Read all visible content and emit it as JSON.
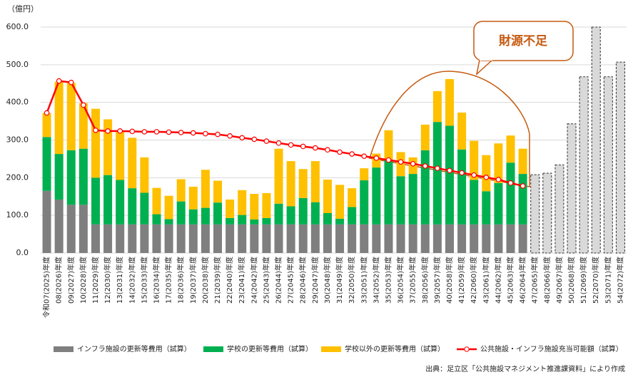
{
  "chart_data": {
    "type": "bar",
    "stacked": true,
    "y_unit": "（億円）",
    "categories": [
      "令和07(2025)年度",
      "08(2026)年度",
      "09(2027)年度",
      "10(2028)年度",
      "11(2029)年度",
      "12(2030)年度",
      "13(2031)年度",
      "14(2032)年度",
      "15(2033)年度",
      "16(2034)年度",
      "17(2035)年度",
      "18(2036)年度",
      "19(2037)年度",
      "20(2038)年度",
      "21(2039)年度",
      "22(2040)年度",
      "23(2041)年度",
      "24(2042)年度",
      "25(2043)年度",
      "26(2044)年度",
      "27(2045)年度",
      "28(2046)年度",
      "29(2047)年度",
      "30(2048)年度",
      "31(2049)年度",
      "32(2050)年度",
      "33(2051)年度",
      "34(2052)年度",
      "35(2053)年度",
      "36(2054)年度",
      "37(2055)年度",
      "38(2056)年度",
      "39(2057)年度",
      "40(2058)年度",
      "41(2059)年度",
      "42(2060)年度",
      "43(2061)年度",
      "44(2062)年度",
      "45(2063)年度",
      "46(2064)年度",
      "47(2065)年度",
      "48(2066)年度",
      "49(2067)年度",
      "50(2068)年度",
      "51(2069)年度",
      "52(2070)年度",
      "53(2071)年度",
      "54(2072)年度"
    ],
    "series": [
      {
        "name": "インフラ施設の更新等費用（試算）",
        "color": "#7f7f7f",
        "values": [
          165,
          142,
          128,
          128,
          76,
          76,
          76,
          76,
          76,
          76,
          76,
          76,
          76,
          76,
          76,
          76,
          76,
          76,
          76,
          76,
          76,
          76,
          76,
          76,
          76,
          76,
          76,
          76,
          76,
          76,
          76,
          76,
          76,
          76,
          76,
          76,
          76,
          76,
          76,
          76,
          null,
          null,
          null,
          null,
          null,
          null,
          null,
          null
        ]
      },
      {
        "name": "学校の更新等費用（試算）",
        "color": "#00b050",
        "values": [
          143,
          121,
          145,
          149,
          124,
          131,
          118,
          96,
          84,
          27,
          14,
          61,
          40,
          44,
          58,
          17,
          25,
          13,
          17,
          55,
          48,
          70,
          59,
          30,
          15,
          46,
          117,
          151,
          171,
          128,
          134,
          197,
          272,
          262,
          199,
          118,
          88,
          110,
          164,
          134,
          null,
          null,
          null,
          null,
          null,
          null,
          null,
          null
        ]
      },
      {
        "name": "学校以外の更新等費用（試算）",
        "color": "#ffc000",
        "values": [
          64,
          192,
          179,
          121,
          183,
          148,
          131,
          134,
          94,
          70,
          62,
          59,
          60,
          101,
          58,
          49,
          66,
          68,
          66,
          146,
          120,
          77,
          109,
          89,
          90,
          50,
          32,
          37,
          79,
          64,
          44,
          68,
          82,
          124,
          98,
          104,
          96,
          105,
          72,
          67,
          null,
          null,
          null,
          null,
          null,
          null,
          null,
          null
        ]
      },
      {
        "color": "#d9d9d9",
        "style": "dashed",
        "values": [
          null,
          null,
          null,
          null,
          null,
          null,
          null,
          null,
          null,
          null,
          null,
          null,
          null,
          null,
          null,
          null,
          null,
          null,
          null,
          null,
          null,
          null,
          null,
          null,
          null,
          null,
          null,
          null,
          null,
          null,
          null,
          null,
          null,
          null,
          null,
          null,
          null,
          null,
          null,
          null,
          208,
          212,
          234,
          343,
          468,
          600,
          468,
          507
        ]
      },
      {
        "name": "公共施設・インフラ施設充当可能額（試算）",
        "type": "line",
        "color": "#ff0000",
        "values": [
          372,
          457,
          453,
          393,
          326,
          324,
          324,
          323,
          322,
          322,
          321,
          320,
          319,
          317,
          315,
          311,
          306,
          302,
          297,
          292,
          287,
          283,
          279,
          274,
          268,
          263,
          257,
          252,
          247,
          242,
          237,
          231,
          225,
          219,
          213,
          207,
          201,
          195,
          186,
          178,
          null,
          null,
          null,
          null,
          null,
          null,
          null,
          null
        ]
      }
    ],
    "ylim": [
      0,
      600
    ],
    "yticks": [
      {
        "value": 0,
        "label": "0.0"
      },
      {
        "value": 100,
        "label": "100.0"
      },
      {
        "value": 200,
        "label": "200.0"
      },
      {
        "value": 300,
        "label": "300.0"
      },
      {
        "value": 400,
        "label": "400.0"
      },
      {
        "value": 500,
        "label": "500.0"
      },
      {
        "value": 600,
        "label": "600.0"
      }
    ],
    "grid": true,
    "annotation": "財源不足",
    "source": "出典：足立区「公共施設マネジメント推進課資料」により作成"
  }
}
